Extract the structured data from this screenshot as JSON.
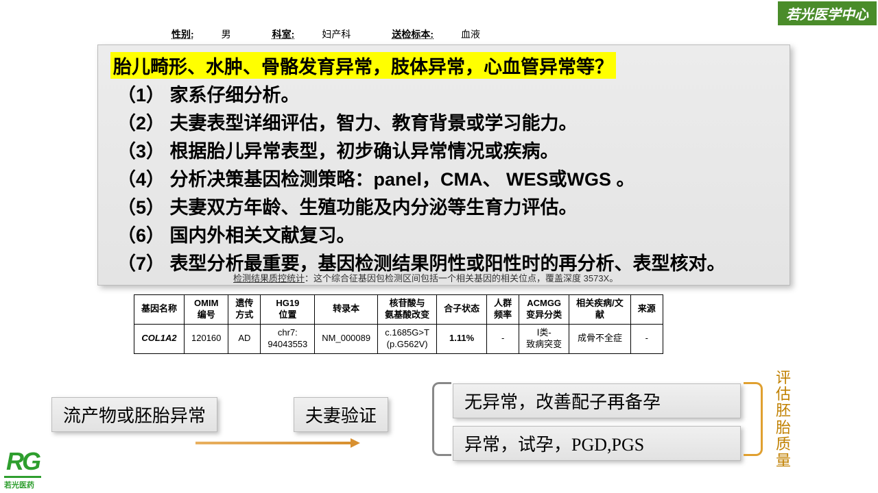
{
  "banner": "若光医学中心",
  "info": {
    "sex_label": "性别:",
    "sex": "男",
    "dept_label": "科室:",
    "dept": "妇产科",
    "sample_label": "送检标本:",
    "sample": "血液"
  },
  "main": {
    "title": "胎儿畸形、水肿、骨骼发育异常，肢体异常，心血管异常等？",
    "items": [
      "（1） 家系仔细分析。",
      "（2） 夫妻表型详细评估，智力、教育背景或学习能力。",
      "（3） 根据胎儿异常表型，初步确认异常情况或疾病。",
      "（4） 分析决策基因检测策略：panel，CMA、 WES或WGS 。",
      "（5） 夫妻双方年龄、生殖功能及内分泌等生育力评估。",
      "（6） 国内外相关文献复习。",
      "（7） 表型分析最重要，基因检测结果阴性或阳性时的再分析、表型核对。"
    ]
  },
  "qc": {
    "label": "检测结果质控统计",
    "text": "：这个综合征基因包检测区间包括一个相关基因的相关位点，覆盖深度 3573X。"
  },
  "table": {
    "headers": [
      "基因名称",
      "OMIM\n编号",
      "遗传\n方式",
      "HG19\n位置",
      "转录本",
      "核苷酸与\n氨基酸改变",
      "合子状态",
      "人群\n频率",
      "ACMGG\n变异分类",
      "相关疾病/文\n献",
      "来源"
    ],
    "row": [
      "COL1A2",
      "120160",
      "AD",
      "chr7:\n94043553",
      "NM_000089",
      "c.1685G>T\n(p.G562V)",
      "1.11%",
      "-",
      "Ⅰ类-\n致病突变",
      "成骨不全症",
      "-"
    ]
  },
  "flow": {
    "b1": "流产物或胚胎异常",
    "b2": "夫妻验证",
    "b3": "无异常，改善配子再备孕",
    "b4": "异常，试孕，PGD,PGS",
    "vert": "评估胚胎质量"
  },
  "logo": {
    "main": "RG",
    "sub": "若光医药"
  }
}
